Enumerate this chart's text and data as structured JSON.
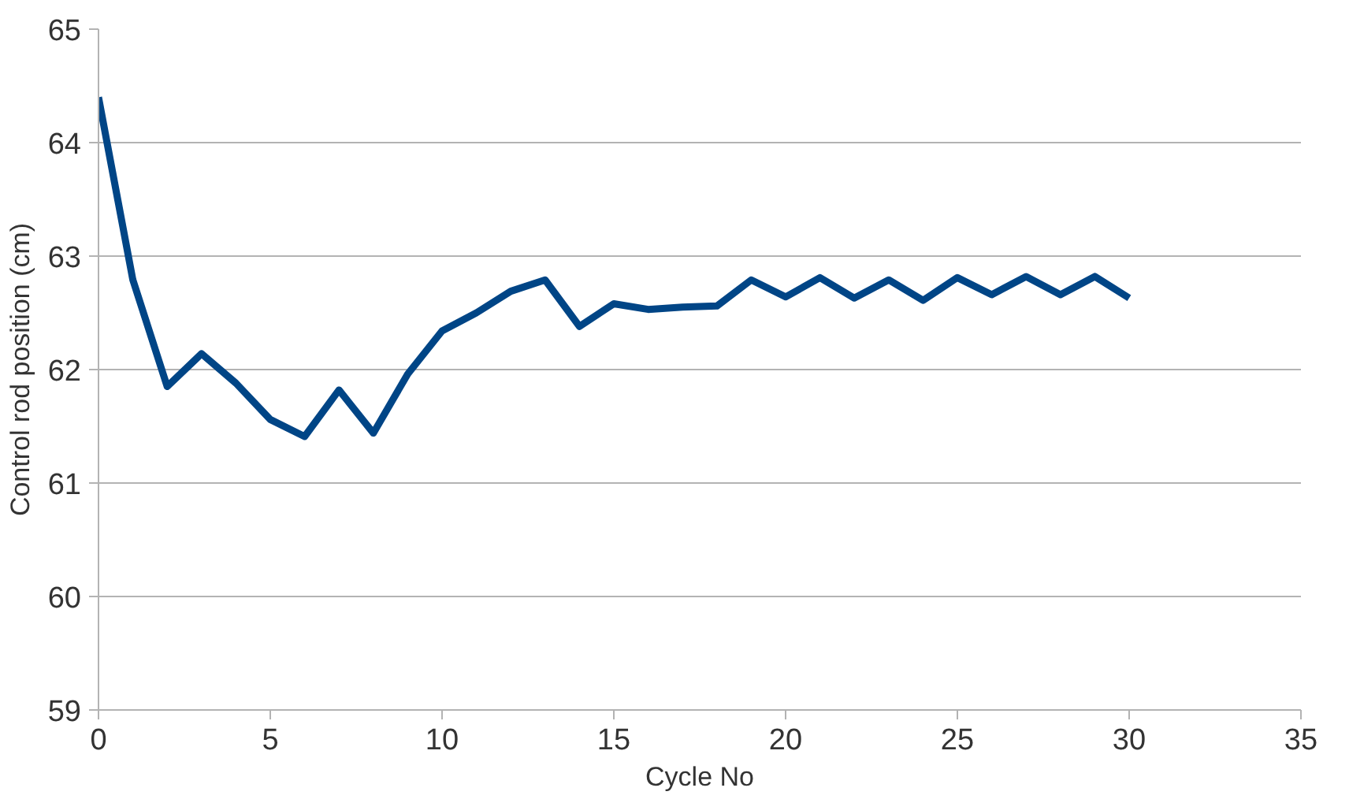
{
  "chart_data": {
    "type": "line",
    "xlabel": "Cycle No",
    "ylabel": "Control rod position (cm)",
    "x": [
      0,
      1,
      2,
      3,
      4,
      5,
      6,
      7,
      8,
      9,
      10,
      11,
      12,
      13,
      14,
      15,
      16,
      17,
      18,
      19,
      20,
      21,
      22,
      23,
      24,
      25,
      26,
      27,
      28,
      29,
      30
    ],
    "series": [
      {
        "color": "#004586",
        "values": [
          64.4,
          62.79,
          61.85,
          62.14,
          61.88,
          61.56,
          61.41,
          61.82,
          61.44,
          61.96,
          62.34,
          62.5,
          62.69,
          62.79,
          62.38,
          62.58,
          62.53,
          62.55,
          62.56,
          62.79,
          62.64,
          62.81,
          62.63,
          62.79,
          62.61,
          62.81,
          62.66,
          62.82,
          62.66,
          62.82,
          62.63
        ]
      }
    ],
    "xlim": [
      0,
      35
    ],
    "xticks": [
      0,
      5,
      10,
      15,
      20,
      25,
      30,
      35
    ],
    "ylim": [
      59,
      65
    ],
    "yticks": [
      59,
      60,
      61,
      62,
      63,
      64,
      65
    ],
    "grid": "y",
    "marker": "none",
    "line_style": "solid"
  }
}
